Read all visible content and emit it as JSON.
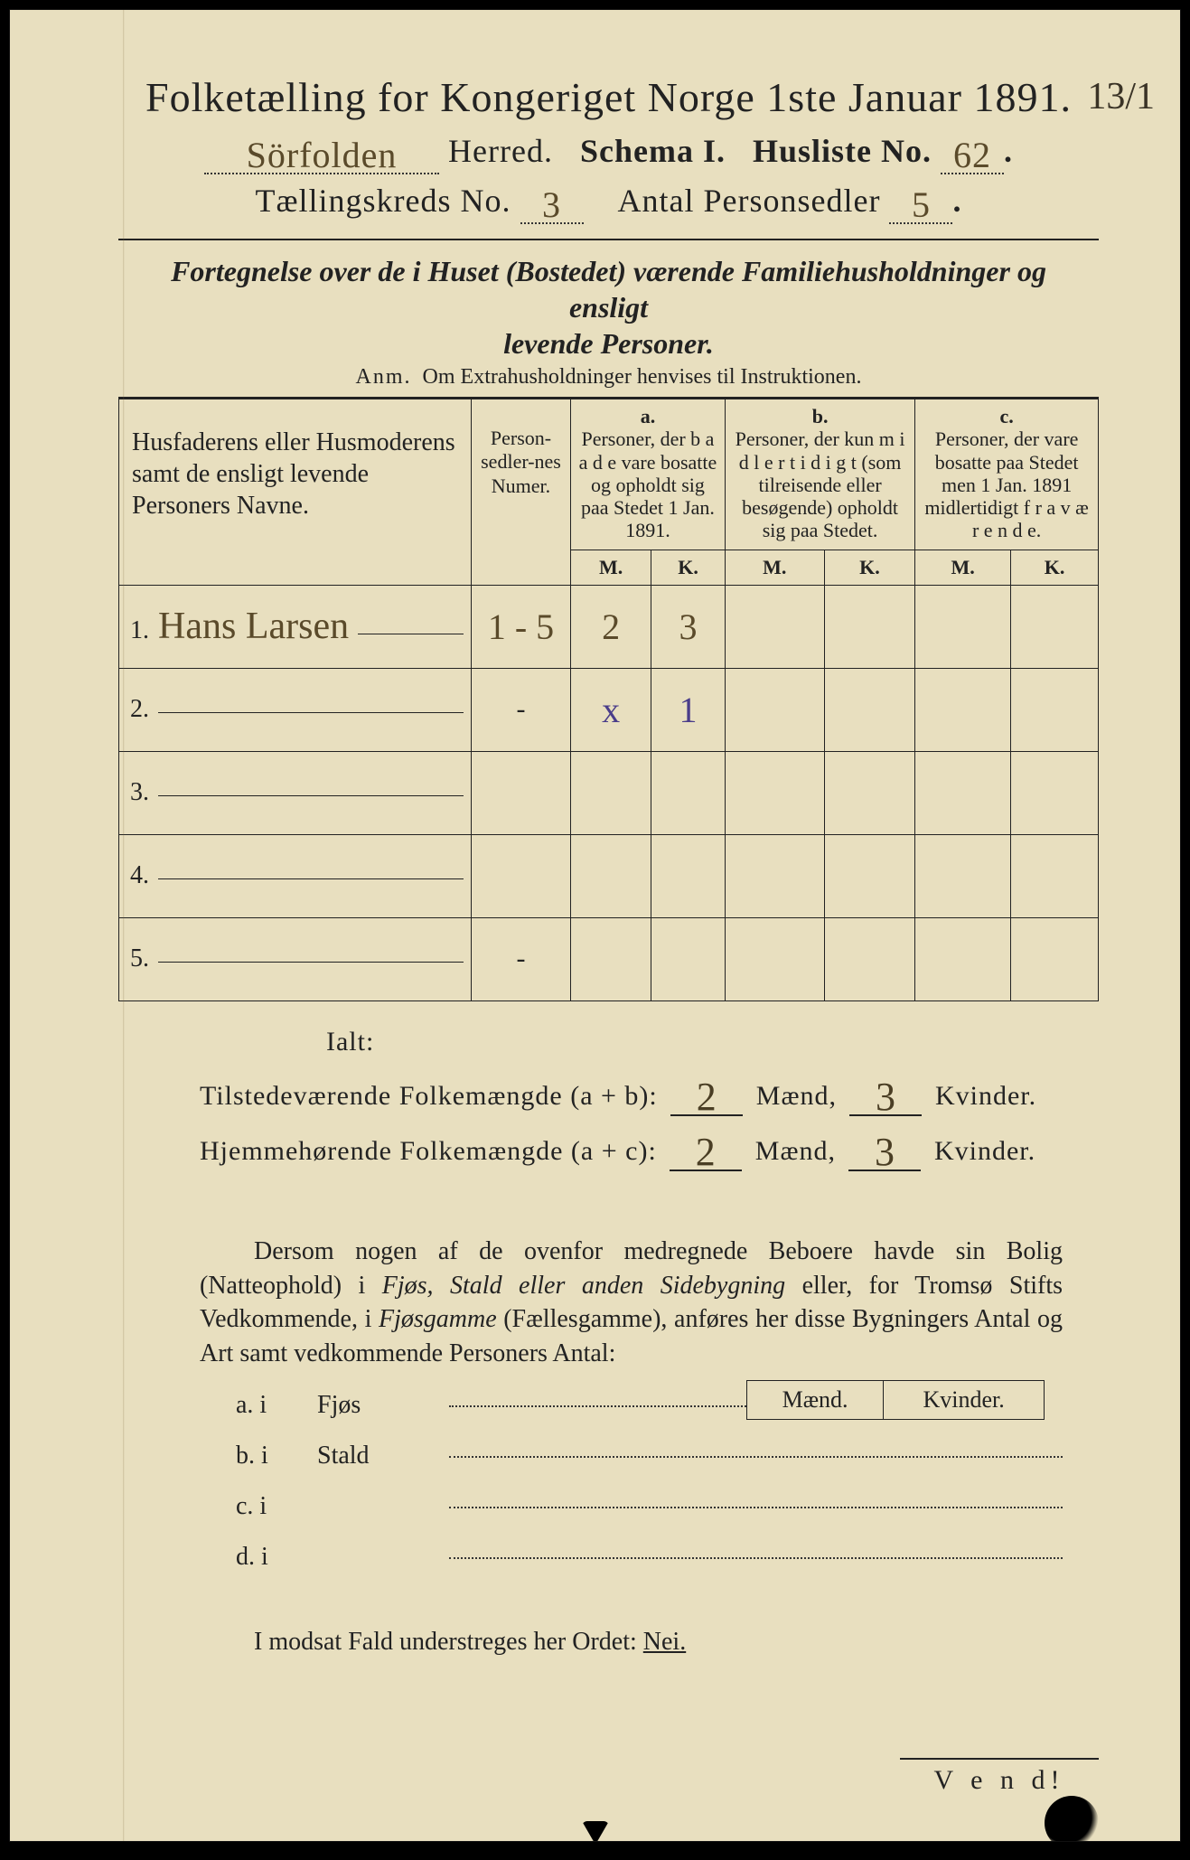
{
  "colors": {
    "paper": "#e8dfbf",
    "ink": "#222222",
    "handwriting": "#5a4a2a",
    "handwriting_alt": "#4a3d8a",
    "frame": "#000000"
  },
  "header": {
    "title": "Folketælling for Kongeriget Norge 1ste Januar 1891.",
    "margin_note": "13/1",
    "herred_value": "Sörfolden",
    "herred_label": "Herred.",
    "schema_label": "Schema I.",
    "husliste_label": "Husliste No.",
    "husliste_no": "62",
    "kreds_label": "Tællingskreds No.",
    "kreds_no": "3",
    "antal_label": "Antal Personsedler",
    "antal_no": "5"
  },
  "fortegnelse": {
    "text_line1": "Fortegnelse over de i Huset (Bostedet) værende Familiehusholdninger og ensligt",
    "text_line2": "levende Personer.",
    "anm_label": "Anm.",
    "anm_text": "Om Extrahusholdninger henvises til Instruktionen."
  },
  "table": {
    "col_names": "Husfaderens eller Husmoderens samt de ensligt levende Personers Navne.",
    "col_num": "Person-sedler-nes Numer.",
    "col_a_label": "a.",
    "col_a_text": "Personer, der b a a d e  vare bosatte og opholdt sig paa Stedet 1 Jan. 1891.",
    "col_b_label": "b.",
    "col_b_text": "Personer, der kun m i d l e r t i d i g t  (som tilreisende eller besøgende) opholdt sig paa Stedet.",
    "col_c_label": "c.",
    "col_c_text": "Personer, der vare bosatte paa Stedet men 1 Jan. 1891 midlertidigt f r a v æ r e n d e.",
    "m_label": "M.",
    "k_label": "K.",
    "rows": [
      {
        "n": "1.",
        "name": "Hans Larsen",
        "num": "1 - 5",
        "a_m": "2",
        "a_k": "3",
        "b_m": "",
        "b_k": "",
        "c_m": "",
        "c_k": ""
      },
      {
        "n": "2.",
        "name": "",
        "num": "-",
        "a_m": "x",
        "a_k": "1",
        "a_alt": true,
        "b_m": "",
        "b_k": "",
        "c_m": "",
        "c_k": ""
      },
      {
        "n": "3.",
        "name": "",
        "num": "",
        "a_m": "",
        "a_k": "",
        "b_m": "",
        "b_k": "",
        "c_m": "",
        "c_k": ""
      },
      {
        "n": "4.",
        "name": "",
        "num": "",
        "a_m": "",
        "a_k": "",
        "b_m": "",
        "b_k": "",
        "c_m": "",
        "c_k": ""
      },
      {
        "n": "5.",
        "name": "",
        "num": "-",
        "a_m": "",
        "a_k": "",
        "b_m": "",
        "b_k": "",
        "c_m": "",
        "c_k": ""
      }
    ]
  },
  "totals": {
    "ialt_label": "Ialt:",
    "line1_label": "Tilstedeværende Folkemængde (a + b):",
    "line1_m": "2",
    "line1_k": "3",
    "line2_label": "Hjemmehørende Folkemængde (a + c):",
    "line2_m": "2",
    "line2_k": "3",
    "maend": "Mænd,",
    "kvinder": "Kvinder."
  },
  "paragraph": {
    "text": "Dersom nogen af de ovenfor medregnede Beboere havde sin Bolig (Natteophold) i Fjøs, Stald eller anden Sidebygning eller, for Tromsø Stifts Vedkommende, i Fjøsgamme (Fællesgamme), anføres her disse Bygningers Antal og Art samt vedkommende Personers Antal:"
  },
  "mk": {
    "maend": "Mænd.",
    "kvinder": "Kvinder."
  },
  "abcd": {
    "a": {
      "lead": "a.  i",
      "mid": "Fjøs"
    },
    "b": {
      "lead": "b.  i",
      "mid": "Stald"
    },
    "c": {
      "lead": "c.  i",
      "mid": ""
    },
    "d": {
      "lead": "d.  i",
      "mid": ""
    }
  },
  "nei": {
    "text_prefix": "I modsat Fald understreges her Ordet:",
    "word": "Nei."
  },
  "vend": "V e n d!"
}
